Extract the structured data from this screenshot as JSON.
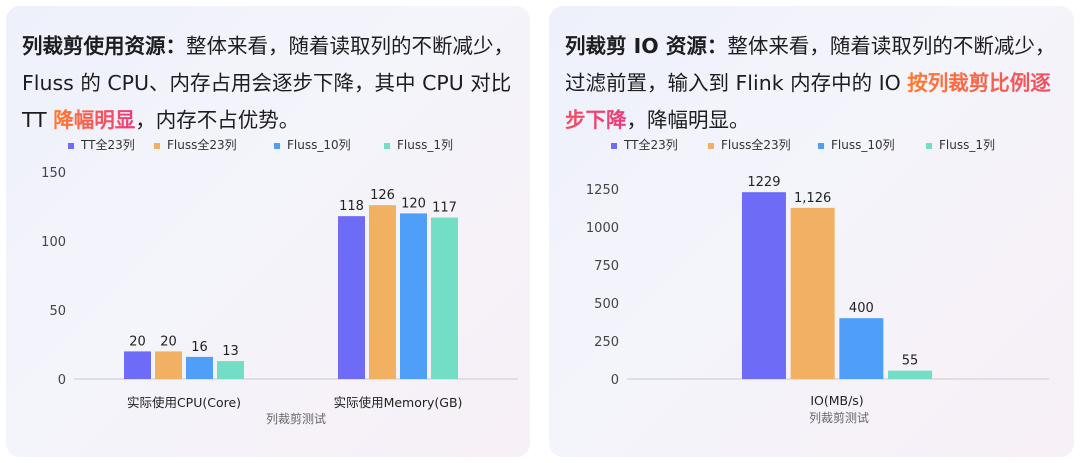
{
  "left_panel": {
    "heading": "列裁剪使用资源：",
    "text_a": "整体来看，随着读取列的不断减少，Fluss 的 CPU、内存占用会逐步下降，其中 CPU 对比 TT ",
    "highlight": "降幅明显",
    "text_b": "，内存不占优势。"
  },
  "right_panel": {
    "heading": "列裁剪 IO 资源：",
    "text_a": "整体来看，随着读取列的不断减少，过滤前置，输入到 Flink 内存中的 IO ",
    "highlight": "按列裁剪比例逐步下降",
    "text_b": "，降幅明显。"
  },
  "colors": {
    "tt_all": "#6e6cf6",
    "fluss_all": "#f2b063",
    "fluss_10": "#4f9ef8",
    "fluss_1": "#72dec5",
    "highlight_start": "#ff7a2f",
    "highlight_end": "#ee3a7a"
  },
  "chart_data": [
    {
      "type": "bar",
      "series": [
        {
          "name": "TT全23列",
          "values": [
            20,
            118
          ]
        },
        {
          "name": "Fluss全23列",
          "values": [
            20,
            126
          ]
        },
        {
          "name": "Fluss_10列",
          "values": [
            16,
            120
          ]
        },
        {
          "name": "Fluss_1列",
          "values": [
            13,
            117
          ]
        }
      ],
      "categories": [
        "实际使用CPU(Core)",
        "实际使用Memory(GB)"
      ],
      "value_labels": [
        [
          "20",
          "118"
        ],
        [
          "20",
          "126"
        ],
        [
          "16",
          "120"
        ],
        [
          "13",
          "117"
        ]
      ],
      "xlabel": "列裁剪测试",
      "ylabel": "",
      "ylim": [
        0,
        150
      ],
      "yticks": [
        0,
        50,
        100,
        150
      ],
      "ytick_labels": [
        "0",
        "50",
        "100",
        "150"
      ],
      "grid": false,
      "legend": "top-center"
    },
    {
      "type": "bar",
      "series": [
        {
          "name": "TT全23列",
          "values": [
            1229
          ]
        },
        {
          "name": "Fluss全23列",
          "values": [
            1126
          ]
        },
        {
          "name": "Fluss_10列",
          "values": [
            400
          ]
        },
        {
          "name": "Fluss_1列",
          "values": [
            55
          ]
        }
      ],
      "categories": [
        "IO(MB/s)"
      ],
      "value_labels": [
        [
          "1229"
        ],
        [
          "1,126"
        ],
        [
          "400"
        ],
        [
          "55"
        ]
      ],
      "xlabel": "列裁剪测试",
      "ylabel": "",
      "ylim": [
        0,
        1250
      ],
      "yticks": [
        0,
        250,
        500,
        750,
        1000,
        1250
      ],
      "ytick_labels": [
        "0",
        "250",
        "500",
        "750",
        "1000",
        "1250"
      ],
      "grid": false,
      "legend": "top-center"
    }
  ]
}
